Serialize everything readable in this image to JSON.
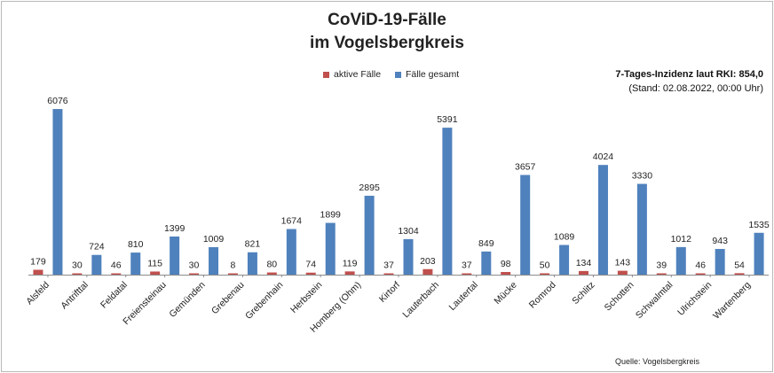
{
  "chart_data": {
    "type": "bar",
    "title": "CoViD-19-Fälle",
    "subtitle": "im Vogelsbergkreis",
    "categories": [
      "Alsfeld",
      "Antrifttal",
      "Feldatal",
      "Freiensteinau",
      "Gemünden",
      "Grebenau",
      "Grebenhain",
      "Herbstein",
      "Homberg (Ohm)",
      "Kirtorf",
      "Lauterbach",
      "Lautertal",
      "Mücke",
      "Romrod",
      "Schlitz",
      "Schotten",
      "Schwalmtal",
      "Ulrichstein",
      "Wartenberg"
    ],
    "series": [
      {
        "name": "aktive Fälle",
        "color": "#c0504d",
        "values": [
          179,
          30,
          46,
          115,
          30,
          8,
          80,
          74,
          119,
          37,
          203,
          37,
          98,
          50,
          134,
          143,
          39,
          46,
          54
        ]
      },
      {
        "name": "Fälle gesamt",
        "color": "#4f81bd",
        "values": [
          6076,
          724,
          810,
          1399,
          1009,
          821,
          1674,
          1899,
          2895,
          1304,
          5391,
          849,
          3657,
          1089,
          4024,
          3330,
          1012,
          943,
          1535
        ]
      }
    ],
    "ylim": [
      0,
      6500
    ],
    "grid": false,
    "legend": "top-center",
    "data_labels": true
  },
  "annotations": {
    "incidence": "7-Tages-Inzidenz laut RKI: 854,0",
    "status": "(Stand: 02.08.2022, 00:00 Uhr)",
    "source": "Quelle: Vogelsbergkreis"
  }
}
